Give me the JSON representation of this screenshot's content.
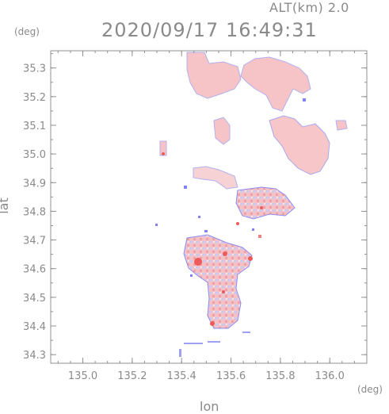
{
  "header": {
    "altitude": "ALT(km) 2.0",
    "timestamp": "2020/09/17 16:49:31",
    "y_unit": "(deg)",
    "x_unit": "(deg)"
  },
  "axes": {
    "xlabel": "lon",
    "ylabel": "lat",
    "x_ticks": [
      "135.0",
      "135.2",
      "135.4",
      "135.6",
      "135.8",
      "136.0"
    ],
    "y_ticks": [
      "35.3",
      "35.2",
      "35.1",
      "35.0",
      "34.9",
      "34.8",
      "34.7",
      "34.6",
      "34.5",
      "34.4",
      "34.3"
    ]
  },
  "map_data": {
    "type": "radar-field",
    "xlim": [
      134.87,
      136.15
    ],
    "ylim": [
      34.27,
      35.36
    ],
    "colors": {
      "frame": "#909090",
      "weak_echo": "#f4b8b8",
      "strong_echo": "#ee5a5a",
      "negative": "#8080f0"
    }
  }
}
